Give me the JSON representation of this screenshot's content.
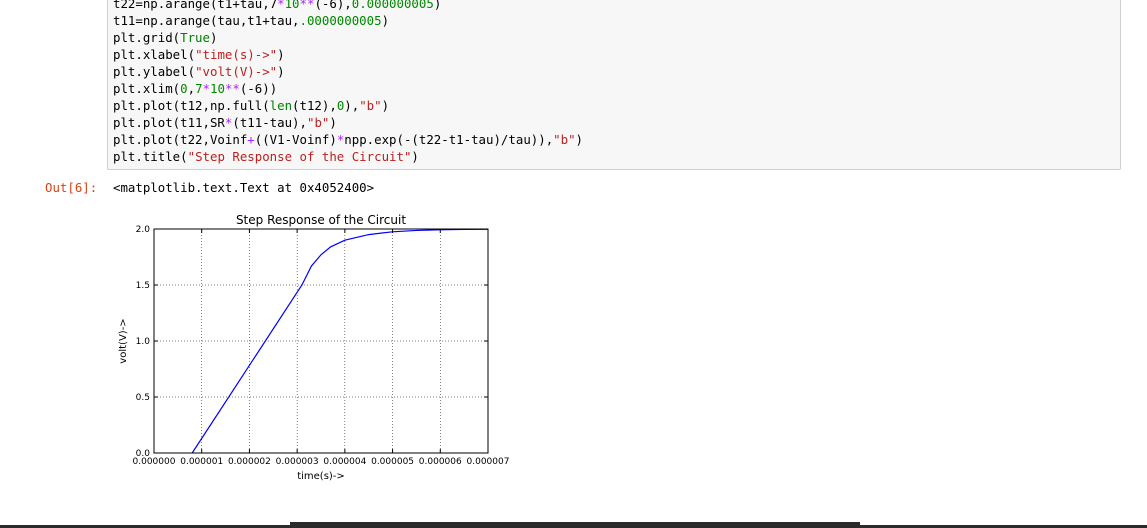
{
  "code": {
    "line1": {
      "a": "t22=np.arange(t1+tau,7",
      "b": "*",
      "c": "10",
      "d": "**",
      "e": "(-6),",
      "f": "0.000000005",
      "g": ")"
    },
    "line2": {
      "a": "t11=np.arange(tau,t1+tau,",
      "b": ".0000000005",
      "c": ")"
    },
    "line3": {
      "a": "plt.grid(",
      "b": "True",
      "c": ")"
    },
    "line4": {
      "a": "plt.xlabel(",
      "b": "\"time(s)->\"",
      "c": ")"
    },
    "line5": {
      "a": "plt.ylabel(",
      "b": "\"volt(V)->\"",
      "c": ")"
    },
    "line6": {
      "a": "plt.xlim(",
      "b": "0",
      "c": ",",
      "d": "7",
      "e": "*",
      "f": "10",
      "g": "**",
      "h": "(-6))"
    },
    "line7": {
      "a": "plt.plot(t12,np.full(",
      "b": "len",
      "c": "(t12),",
      "d": "0",
      "e": "),",
      "f": "\"b\"",
      "g": ")"
    },
    "line8": {
      "a": "plt.plot(t11,SR",
      "b": "*",
      "c": "(t11-tau),",
      "d": "\"b\"",
      "e": ")"
    },
    "line9": {
      "a": "plt.plot(t22,Voinf",
      "b": "+",
      "c": "((V1-Voinf)",
      "d": "*",
      "e": "npp.exp(-(t22-t1-tau)/tau)),",
      "f": "\"b\"",
      "g": ")"
    },
    "line10": {
      "a": "plt.title(",
      "b": "\"Step Response of the Circuit\"",
      "c": ")"
    }
  },
  "output": {
    "prompt": "Out[6]:",
    "text": "<matplotlib.text.Text at 0x4052400>"
  },
  "chart_data": {
    "type": "line",
    "title": "Step Response of the Circuit",
    "xlabel": "time(s)->",
    "ylabel": "volt(V)->",
    "xlim": [
      0,
      7e-06
    ],
    "ylim": [
      0,
      2.0
    ],
    "grid": true,
    "xticks": [
      "0.000000",
      "0.000001",
      "0.000002",
      "0.000003",
      "0.000004",
      "0.000005",
      "0.000006",
      "0.000007"
    ],
    "yticks": [
      "0.0",
      "0.5",
      "1.0",
      "1.5",
      "2.0"
    ],
    "line_color": "#0000ff",
    "series": [
      {
        "x": [
          8e-07,
          3.1e-06,
          3.3e-06,
          3.5e-06,
          3.7e-06,
          4e-06,
          4.5e-06,
          5e-06,
          5.5e-06,
          6e-06,
          6.5e-06,
          7e-06
        ],
        "y": [
          0.0,
          1.5,
          1.67,
          1.77,
          1.84,
          1.9,
          1.95,
          1.975,
          1.987,
          1.993,
          1.997,
          1.998
        ]
      }
    ]
  }
}
